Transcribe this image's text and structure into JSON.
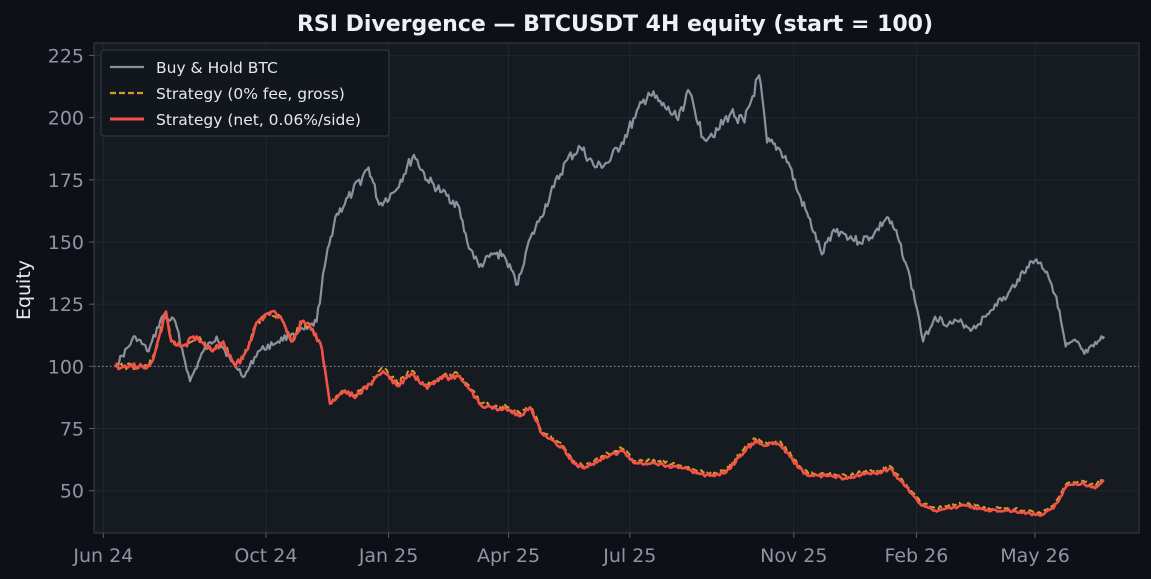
{
  "chart_data": {
    "type": "line",
    "title": "RSI Divergence — BTCUSDT 4H equity (start = 100)",
    "xlabel": "",
    "ylabel": "Equity",
    "ylim": [
      33,
      230
    ],
    "xlim": [
      "2024-05-25",
      "2026-07-18"
    ],
    "yticks": [
      50,
      75,
      100,
      125,
      150,
      175,
      200,
      225
    ],
    "xticks": [
      {
        "label": "Jun 24",
        "date": "2024-06-01"
      },
      {
        "label": "Oct 24",
        "date": "2024-10-01"
      },
      {
        "label": "Jan 25",
        "date": "2025-01-01"
      },
      {
        "label": "Apr 25",
        "date": "2025-04-01"
      },
      {
        "label": "Jul 25",
        "date": "2025-07-01"
      },
      {
        "label": "Nov 25",
        "date": "2025-11-01"
      },
      {
        "label": "Feb 26",
        "date": "2026-02-01"
      },
      {
        "label": "May 26",
        "date": "2026-05-01"
      }
    ],
    "reference_line": {
      "y": 100
    },
    "grid": true,
    "legend_position": "top-left",
    "colors": {
      "background": "#0d1017",
      "plot_background": "#161a21",
      "axes": "#3a3f49",
      "grid": "#222730",
      "buy_hold": "#8c929d",
      "gross": "#d99a2b",
      "net": "#f2524a"
    },
    "series": [
      {
        "name": "Buy & Hold BTC",
        "style": "solid",
        "color": "#8c929d",
        "points": [
          [
            "2024-06-10",
            100
          ],
          [
            "2024-06-25",
            112
          ],
          [
            "2024-07-05",
            106
          ],
          [
            "2024-07-15",
            120
          ],
          [
            "2024-07-25",
            118
          ],
          [
            "2024-08-05",
            94
          ],
          [
            "2024-08-15",
            106
          ],
          [
            "2024-08-25",
            112
          ],
          [
            "2024-09-05",
            102
          ],
          [
            "2024-09-15",
            96
          ],
          [
            "2024-09-25",
            106
          ],
          [
            "2024-10-10",
            110
          ],
          [
            "2024-10-20",
            113
          ],
          [
            "2024-11-01",
            115
          ],
          [
            "2024-11-08",
            118
          ],
          [
            "2024-11-14",
            140
          ],
          [
            "2024-11-22",
            160
          ],
          [
            "2024-12-05",
            170
          ],
          [
            "2024-12-17",
            180
          ],
          [
            "2024-12-25",
            165
          ],
          [
            "2025-01-05",
            170
          ],
          [
            "2025-01-20",
            185
          ],
          [
            "2025-01-30",
            175
          ],
          [
            "2025-02-10",
            170
          ],
          [
            "2025-02-22",
            165
          ],
          [
            "2025-03-01",
            150
          ],
          [
            "2025-03-10",
            140
          ],
          [
            "2025-03-20",
            145
          ],
          [
            "2025-03-28",
            145
          ],
          [
            "2025-04-08",
            133
          ],
          [
            "2025-04-15",
            148
          ],
          [
            "2025-04-25",
            160
          ],
          [
            "2025-05-05",
            172
          ],
          [
            "2025-05-15",
            183
          ],
          [
            "2025-05-25",
            188
          ],
          [
            "2025-06-05",
            180
          ],
          [
            "2025-06-15",
            182
          ],
          [
            "2025-06-25",
            190
          ],
          [
            "2025-07-05",
            200
          ],
          [
            "2025-07-15",
            210
          ],
          [
            "2025-07-25",
            205
          ],
          [
            "2025-08-05",
            200
          ],
          [
            "2025-08-15",
            210
          ],
          [
            "2025-08-25",
            192
          ],
          [
            "2025-09-05",
            195
          ],
          [
            "2025-09-15",
            202
          ],
          [
            "2025-09-25",
            198
          ],
          [
            "2025-10-06",
            217
          ],
          [
            "2025-10-12",
            190
          ],
          [
            "2025-10-20",
            188
          ],
          [
            "2025-10-28",
            182
          ],
          [
            "2025-11-04",
            170
          ],
          [
            "2025-11-12",
            160
          ],
          [
            "2025-11-22",
            145
          ],
          [
            "2025-12-01",
            155
          ],
          [
            "2025-12-10",
            153
          ],
          [
            "2025-12-20",
            150
          ],
          [
            "2025-12-31",
            153
          ],
          [
            "2026-01-10",
            160
          ],
          [
            "2026-01-18",
            152
          ],
          [
            "2026-01-25",
            140
          ],
          [
            "2026-02-02",
            122
          ],
          [
            "2026-02-06",
            110
          ],
          [
            "2026-02-15",
            120
          ],
          [
            "2026-02-25",
            117
          ],
          [
            "2026-03-05",
            118
          ],
          [
            "2026-03-15",
            115
          ],
          [
            "2026-03-25",
            120
          ],
          [
            "2026-04-01",
            125
          ],
          [
            "2026-04-10",
            128
          ],
          [
            "2026-04-18",
            135
          ],
          [
            "2026-04-25",
            140
          ],
          [
            "2026-05-02",
            143
          ],
          [
            "2026-05-10",
            138
          ],
          [
            "2026-05-17",
            128
          ],
          [
            "2026-05-24",
            108
          ],
          [
            "2026-06-01",
            110
          ],
          [
            "2026-06-07",
            105
          ],
          [
            "2026-06-14",
            108
          ],
          [
            "2026-06-22",
            112
          ]
        ]
      },
      {
        "name": "Strategy (0% fee, gross)",
        "style": "dashed",
        "color": "#d99a2b",
        "points": [
          [
            "2024-06-10",
            100
          ],
          [
            "2024-06-30",
            100
          ],
          [
            "2024-07-05",
            100
          ],
          [
            "2024-07-10",
            106
          ],
          [
            "2024-07-18",
            122
          ],
          [
            "2024-07-22",
            110
          ],
          [
            "2024-07-30",
            108
          ],
          [
            "2024-08-10",
            112
          ],
          [
            "2024-08-22",
            106
          ],
          [
            "2024-08-30",
            110
          ],
          [
            "2024-09-08",
            100
          ],
          [
            "2024-09-15",
            105
          ],
          [
            "2024-09-25",
            118
          ],
          [
            "2024-10-05",
            122
          ],
          [
            "2024-10-12",
            120
          ],
          [
            "2024-10-20",
            110
          ],
          [
            "2024-10-28",
            118
          ],
          [
            "2024-11-05",
            115
          ],
          [
            "2024-11-12",
            107
          ],
          [
            "2024-11-18",
            85
          ],
          [
            "2024-11-28",
            90
          ],
          [
            "2024-12-08",
            89
          ],
          [
            "2024-12-18",
            93
          ],
          [
            "2024-12-28",
            99
          ],
          [
            "2025-01-08",
            93
          ],
          [
            "2025-01-18",
            98
          ],
          [
            "2025-01-30",
            92
          ],
          [
            "2025-02-10",
            96
          ],
          [
            "2025-02-22",
            97
          ],
          [
            "2025-03-01",
            93
          ],
          [
            "2025-03-10",
            86
          ],
          [
            "2025-03-20",
            84
          ],
          [
            "2025-03-30",
            84
          ],
          [
            "2025-04-10",
            81
          ],
          [
            "2025-04-18",
            84
          ],
          [
            "2025-04-26",
            74
          ],
          [
            "2025-05-05",
            71
          ],
          [
            "2025-05-12",
            68
          ],
          [
            "2025-05-20",
            62
          ],
          [
            "2025-05-28",
            60
          ],
          [
            "2025-06-10",
            64
          ],
          [
            "2025-06-25",
            67
          ],
          [
            "2025-07-05",
            62
          ],
          [
            "2025-07-20",
            62
          ],
          [
            "2025-07-30",
            61
          ],
          [
            "2025-08-10",
            60
          ],
          [
            "2025-08-20",
            58
          ],
          [
            "2025-08-30",
            57
          ],
          [
            "2025-09-10",
            58
          ],
          [
            "2025-09-22",
            65
          ],
          [
            "2025-10-03",
            71
          ],
          [
            "2025-10-10",
            69
          ],
          [
            "2025-10-20",
            70
          ],
          [
            "2025-10-28",
            66
          ],
          [
            "2025-11-05",
            60
          ],
          [
            "2025-11-12",
            57
          ],
          [
            "2025-11-25",
            57
          ],
          [
            "2025-12-10",
            56
          ],
          [
            "2025-12-25",
            58
          ],
          [
            "2026-01-05",
            58
          ],
          [
            "2026-01-12",
            60
          ],
          [
            "2026-01-20",
            55
          ],
          [
            "2026-01-28",
            50
          ],
          [
            "2026-02-05",
            45
          ],
          [
            "2026-02-15",
            43
          ],
          [
            "2026-02-25",
            44
          ],
          [
            "2026-03-10",
            45
          ],
          [
            "2026-03-25",
            43
          ],
          [
            "2026-04-10",
            43
          ],
          [
            "2026-04-25",
            42
          ],
          [
            "2026-05-05",
            41
          ],
          [
            "2026-05-15",
            44
          ],
          [
            "2026-05-25",
            53
          ],
          [
            "2026-06-05",
            54
          ],
          [
            "2026-06-15",
            52
          ],
          [
            "2026-06-22",
            55
          ]
        ]
      },
      {
        "name": "Strategy (net, 0.06%/side)",
        "style": "solid",
        "color": "#f2524a",
        "points": [
          [
            "2024-06-10",
            100
          ],
          [
            "2024-06-30",
            100
          ],
          [
            "2024-07-05",
            100
          ],
          [
            "2024-07-10",
            106
          ],
          [
            "2024-07-18",
            122
          ],
          [
            "2024-07-22",
            110
          ],
          [
            "2024-07-30",
            108
          ],
          [
            "2024-08-10",
            112
          ],
          [
            "2024-08-22",
            106
          ],
          [
            "2024-08-30",
            110
          ],
          [
            "2024-09-08",
            100
          ],
          [
            "2024-09-15",
            105
          ],
          [
            "2024-09-25",
            118
          ],
          [
            "2024-10-05",
            122
          ],
          [
            "2024-10-12",
            120
          ],
          [
            "2024-10-20",
            110
          ],
          [
            "2024-10-28",
            118
          ],
          [
            "2024-11-05",
            115
          ],
          [
            "2024-11-12",
            107
          ],
          [
            "2024-11-18",
            85
          ],
          [
            "2024-11-28",
            90
          ],
          [
            "2024-12-08",
            88
          ],
          [
            "2024-12-18",
            93
          ],
          [
            "2024-12-28",
            98
          ],
          [
            "2025-01-08",
            92
          ],
          [
            "2025-01-18",
            97
          ],
          [
            "2025-01-30",
            91
          ],
          [
            "2025-02-10",
            95
          ],
          [
            "2025-02-22",
            96
          ],
          [
            "2025-03-01",
            92
          ],
          [
            "2025-03-10",
            85
          ],
          [
            "2025-03-20",
            83
          ],
          [
            "2025-03-30",
            83
          ],
          [
            "2025-04-10",
            80
          ],
          [
            "2025-04-18",
            83
          ],
          [
            "2025-04-26",
            73
          ],
          [
            "2025-05-05",
            70
          ],
          [
            "2025-05-12",
            67
          ],
          [
            "2025-05-20",
            61
          ],
          [
            "2025-05-28",
            59
          ],
          [
            "2025-06-10",
            63
          ],
          [
            "2025-06-25",
            66
          ],
          [
            "2025-07-05",
            61
          ],
          [
            "2025-07-20",
            61
          ],
          [
            "2025-07-30",
            60
          ],
          [
            "2025-08-10",
            59
          ],
          [
            "2025-08-20",
            57
          ],
          [
            "2025-08-30",
            56
          ],
          [
            "2025-09-10",
            57
          ],
          [
            "2025-09-22",
            64
          ],
          [
            "2025-10-03",
            70
          ],
          [
            "2025-10-10",
            68
          ],
          [
            "2025-10-20",
            69
          ],
          [
            "2025-10-28",
            65
          ],
          [
            "2025-11-05",
            59
          ],
          [
            "2025-11-12",
            56
          ],
          [
            "2025-11-25",
            56
          ],
          [
            "2025-12-10",
            55
          ],
          [
            "2025-12-25",
            57
          ],
          [
            "2026-01-05",
            57
          ],
          [
            "2026-01-12",
            59
          ],
          [
            "2026-01-20",
            54
          ],
          [
            "2026-01-28",
            49
          ],
          [
            "2026-02-05",
            44
          ],
          [
            "2026-02-15",
            42
          ],
          [
            "2026-02-25",
            43
          ],
          [
            "2026-03-10",
            44
          ],
          [
            "2026-03-25",
            42
          ],
          [
            "2026-04-10",
            42
          ],
          [
            "2026-04-25",
            41
          ],
          [
            "2026-05-05",
            40
          ],
          [
            "2026-05-15",
            43
          ],
          [
            "2026-05-25",
            52
          ],
          [
            "2026-06-05",
            53
          ],
          [
            "2026-06-15",
            51
          ],
          [
            "2026-06-22",
            54
          ]
        ]
      }
    ]
  }
}
